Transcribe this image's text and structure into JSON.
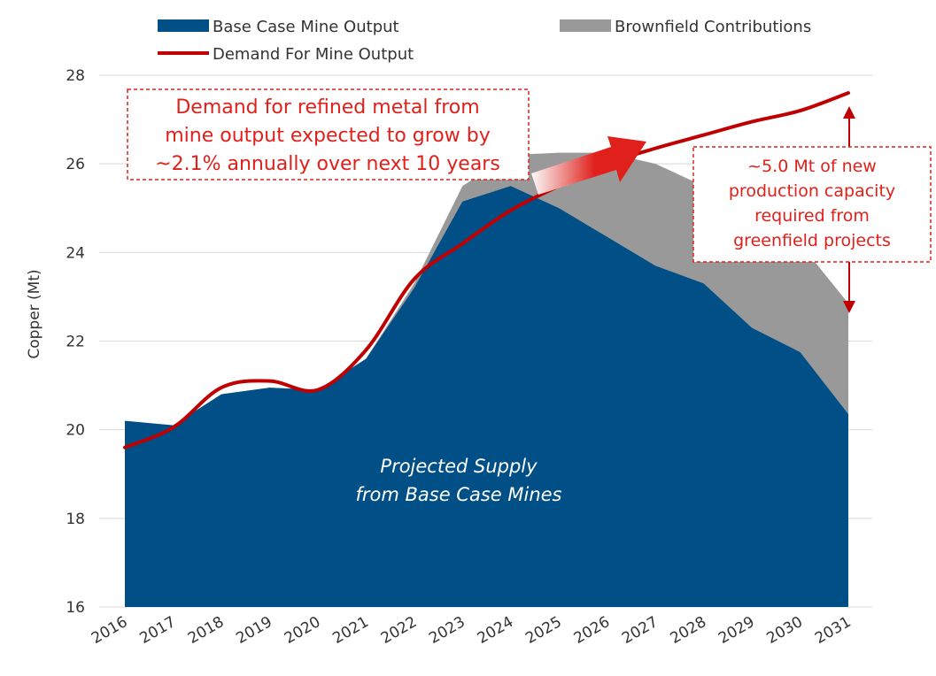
{
  "chart_data": {
    "type": "area",
    "categories": [
      "2016",
      "2017",
      "2018",
      "2019",
      "2020",
      "2021",
      "2022",
      "2023",
      "2024",
      "2025",
      "2026",
      "2027",
      "2028",
      "2029",
      "2030",
      "2031"
    ],
    "ylabel": "Copper (Mt)",
    "xlabel": "",
    "ylim": [
      16,
      28
    ],
    "yticks": [
      16,
      18,
      20,
      22,
      24,
      26,
      28
    ],
    "grid": true,
    "legend_position": "top",
    "series": [
      {
        "name": "Base Case Mine Output",
        "kind": "area",
        "color": "#004f86",
        "values": [
          20.2,
          20.1,
          20.8,
          20.95,
          20.9,
          21.6,
          23.2,
          25.15,
          25.5,
          25.0,
          24.35,
          23.7,
          23.3,
          22.3,
          21.75,
          20.35
        ]
      },
      {
        "name": "Brownfield Contributions",
        "kind": "area-stacked-top",
        "color": "#999999",
        "totals": [
          20.2,
          20.1,
          20.8,
          20.95,
          20.9,
          21.6,
          23.3,
          25.5,
          26.2,
          26.25,
          26.25,
          26.0,
          25.5,
          24.9,
          24.2,
          22.85
        ]
      },
      {
        "name": "Demand For Mine Output",
        "kind": "line",
        "color": "#c00000",
        "values": [
          19.6,
          20.05,
          20.95,
          21.1,
          20.9,
          21.8,
          23.4,
          24.2,
          24.95,
          25.5,
          26.0,
          26.35,
          26.65,
          26.95,
          27.2,
          27.6
        ]
      }
    ],
    "annotations": {
      "demand_growth": [
        "Demand for refined metal from",
        "mine output expected to grow by",
        "~2.1% annually over next 10 years"
      ],
      "greenfield_gap": [
        "~5.0 Mt of new",
        "production capacity",
        "required from",
        "greenfield projects"
      ],
      "supply_label": [
        "Projected Supply",
        "from Base Case Mines"
      ]
    }
  }
}
